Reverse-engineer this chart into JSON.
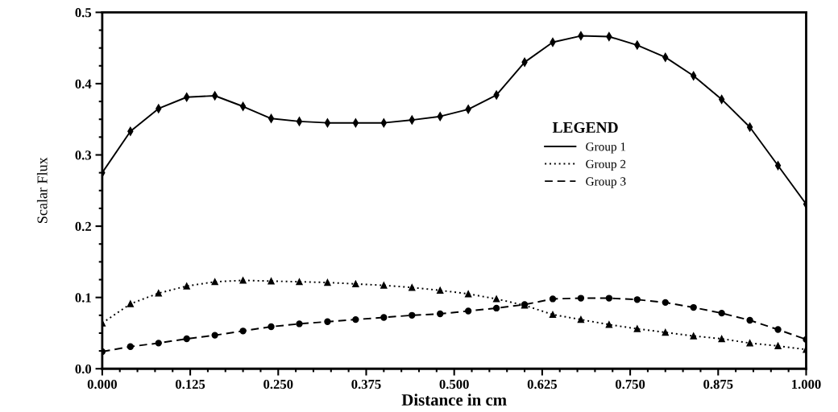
{
  "chart_data": {
    "type": "line",
    "xlabel": "Distance in cm",
    "ylabel": "Scalar Flux",
    "legend_title": "LEGEND",
    "x": [
      0,
      0.04,
      0.08,
      0.12,
      0.16,
      0.2,
      0.24,
      0.28,
      0.32,
      0.36,
      0.4,
      0.44,
      0.48,
      0.52,
      0.56,
      0.6,
      0.64,
      0.68,
      0.72,
      0.76,
      0.8,
      0.84,
      0.88,
      0.92,
      0.96,
      1.0
    ],
    "series": [
      {
        "name": "Group 1",
        "color": "#000000",
        "marker": "diamond",
        "line_style": "solid",
        "values": [
          0.275,
          0.333,
          0.365,
          0.381,
          0.383,
          0.368,
          0.351,
          0.347,
          0.345,
          0.345,
          0.345,
          0.349,
          0.354,
          0.364,
          0.384,
          0.43,
          0.458,
          0.467,
          0.466,
          0.454,
          0.437,
          0.411,
          0.378,
          0.339,
          0.285,
          0.231
        ]
      },
      {
        "name": "Group 2",
        "color": "#000000",
        "marker": "triangle",
        "line_style": "dotted",
        "values": [
          0.064,
          0.091,
          0.106,
          0.116,
          0.122,
          0.124,
          0.123,
          0.122,
          0.121,
          0.119,
          0.117,
          0.114,
          0.11,
          0.105,
          0.098,
          0.089,
          0.076,
          0.069,
          0.062,
          0.056,
          0.051,
          0.046,
          0.042,
          0.036,
          0.032,
          0.027
        ]
      },
      {
        "name": "Group 3",
        "color": "#000000",
        "marker": "circle",
        "line_style": "dashed",
        "values": [
          0.024,
          0.031,
          0.036,
          0.042,
          0.047,
          0.053,
          0.059,
          0.063,
          0.066,
          0.069,
          0.072,
          0.075,
          0.077,
          0.081,
          0.085,
          0.09,
          0.098,
          0.099,
          0.099,
          0.097,
          0.093,
          0.086,
          0.078,
          0.068,
          0.055,
          0.041
        ]
      }
    ],
    "xlim": [
      0,
      1
    ],
    "ylim": [
      0,
      0.5
    ],
    "xticks": [
      {
        "value": 0,
        "label": "0.000"
      },
      {
        "value": 0.125,
        "label": "0.125"
      },
      {
        "value": 0.25,
        "label": "0.250"
      },
      {
        "value": 0.375,
        "label": "0.375"
      },
      {
        "value": 0.5,
        "label": "0.500"
      },
      {
        "value": 0.625,
        "label": "0.625"
      },
      {
        "value": 0.75,
        "label": "0.750"
      },
      {
        "value": 0.875,
        "label": "0.875"
      },
      {
        "value": 1,
        "label": "1.000"
      }
    ],
    "yticks": [
      {
        "value": 0,
        "label": "0.0"
      },
      {
        "value": 0.1,
        "label": "0.1"
      },
      {
        "value": 0.2,
        "label": "0.2"
      },
      {
        "value": 0.3,
        "label": "0.3"
      },
      {
        "value": 0.4,
        "label": "0.4"
      },
      {
        "value": 0.5,
        "label": "0.5"
      }
    ],
    "grid": false,
    "legend": "center right"
  }
}
